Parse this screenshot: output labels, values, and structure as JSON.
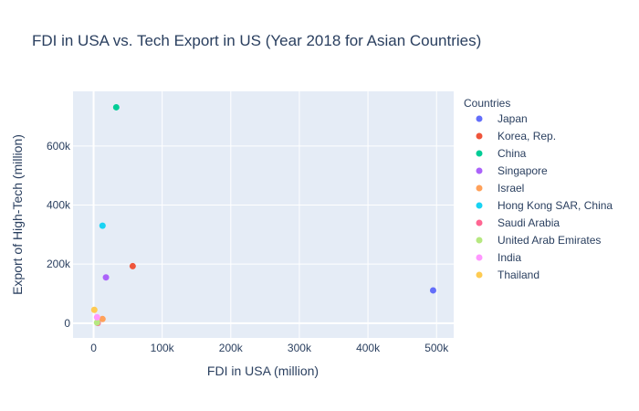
{
  "chart_data": {
    "type": "scatter",
    "title": "FDI in USA vs. Tech Export in US (Year 2018 for Asian Countries)",
    "xlabel": "FDI in USA (million)",
    "ylabel": "Export of High-Tech (million)",
    "xlim": [
      -30000,
      525000
    ],
    "ylim": [
      -50000,
      785000
    ],
    "x_ticks": [
      0,
      100000,
      200000,
      300000,
      400000,
      500000
    ],
    "x_tick_labels": [
      "0",
      "100k",
      "200k",
      "300k",
      "400k",
      "500k"
    ],
    "y_ticks": [
      0,
      200000,
      400000,
      600000
    ],
    "y_tick_labels": [
      "0",
      "200k",
      "400k",
      "600k"
    ],
    "grid": true,
    "legend_title": "Countries",
    "legend_position": "right",
    "series": [
      {
        "name": "Japan",
        "color": "#636efa",
        "points": [
          {
            "x": 495000,
            "y": 111000
          }
        ]
      },
      {
        "name": "Korea, Rep.",
        "color": "#EF553B",
        "points": [
          {
            "x": 57000,
            "y": 193000
          }
        ]
      },
      {
        "name": "China",
        "color": "#00cc96",
        "points": [
          {
            "x": 33000,
            "y": 731000
          }
        ]
      },
      {
        "name": "Singapore",
        "color": "#ab63fa",
        "points": [
          {
            "x": 18000,
            "y": 155000
          }
        ]
      },
      {
        "name": "Israel",
        "color": "#FFA15A",
        "points": [
          {
            "x": 13000,
            "y": 14000
          }
        ]
      },
      {
        "name": "Hong Kong SAR, China",
        "color": "#19d3f3",
        "points": [
          {
            "x": 13000,
            "y": 330000
          }
        ]
      },
      {
        "name": "Saudi Arabia",
        "color": "#FF6692",
        "points": [
          {
            "x": 6000,
            "y": 500
          }
        ]
      },
      {
        "name": "United Arab Emirates",
        "color": "#B6E880",
        "points": [
          {
            "x": 5000,
            "y": 2000
          }
        ]
      },
      {
        "name": "India",
        "color": "#FF97FF",
        "points": [
          {
            "x": 5000,
            "y": 20000
          }
        ]
      },
      {
        "name": "Thailand",
        "color": "#FECB52",
        "points": [
          {
            "x": 1000,
            "y": 45000
          }
        ]
      }
    ]
  }
}
